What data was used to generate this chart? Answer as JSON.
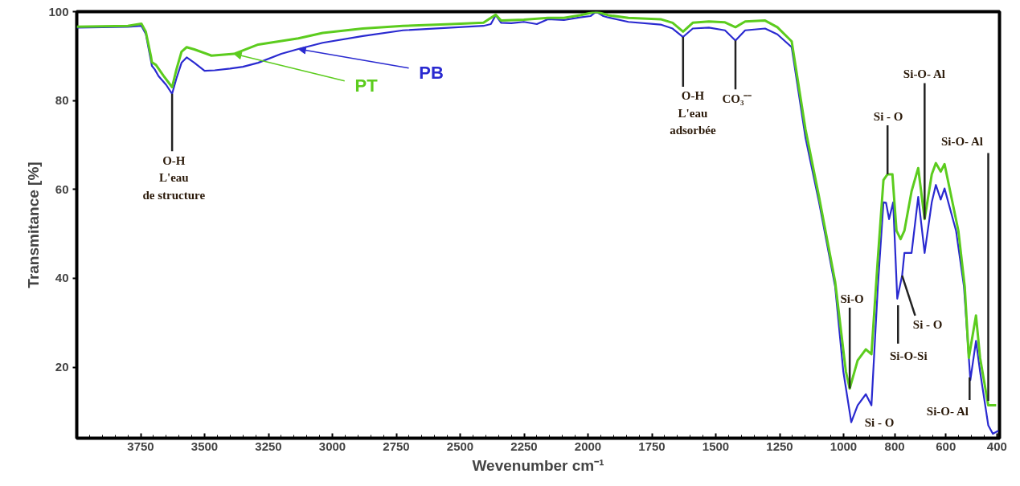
{
  "chart_data": {
    "type": "line",
    "xlabel": "Wevenumber cm⁻¹",
    "ylabel": "Transmitance [%]",
    "xlim": [
      4000,
      390
    ],
    "ylim": [
      4,
      100
    ],
    "xticks": [
      3750,
      3500,
      3250,
      3000,
      2750,
      2500,
      2250,
      2000,
      1750,
      1500,
      1250,
      1000,
      800,
      600,
      400
    ],
    "yticks": [
      20,
      40,
      60,
      80,
      100
    ],
    "grid": false,
    "legend": false,
    "marker": "none",
    "line_style": "solid",
    "series": [
      {
        "name": "PB",
        "color": "#2a2ad0",
        "x": [
          4000,
          3800,
          3747,
          3730,
          3710,
          3706,
          3695,
          3680,
          3650,
          3627,
          3610,
          3590,
          3570,
          3540,
          3500,
          3460,
          3400,
          3350,
          3290,
          3200,
          3133,
          3038,
          2881,
          2724,
          2535,
          2409,
          2380,
          2361,
          2340,
          2300,
          2251,
          2200,
          2157,
          2094,
          2031,
          1990,
          1968,
          1940,
          1921,
          1842,
          1716,
          1669,
          1628,
          1590,
          1527,
          1464,
          1423,
          1385,
          1307,
          1259,
          1203,
          1149,
          1096,
          1033,
          1001,
          970,
          945,
          913,
          891,
          866,
          844,
          834,
          822,
          806,
          790,
          771,
          762,
          734,
          708,
          683,
          655,
          639,
          620,
          605,
          560,
          529,
          504,
          482,
          466,
          434,
          416,
          394
        ],
        "values": [
          96.4,
          96.6,
          96.8,
          95,
          89,
          87.8,
          87,
          85.5,
          83.5,
          81.5,
          85,
          88.5,
          89.7,
          88.5,
          86.7,
          86.8,
          87.2,
          87.6,
          88.5,
          90.5,
          91.6,
          93,
          94.5,
          95.8,
          96.4,
          96.8,
          97.2,
          99.2,
          97.5,
          97.4,
          97.7,
          97.2,
          98.3,
          98.1,
          98.7,
          99,
          100,
          99,
          98.7,
          97.7,
          97.1,
          96.2,
          94.3,
          96.2,
          96.4,
          95.8,
          93.5,
          95.8,
          96.2,
          94.9,
          92,
          71.6,
          57.1,
          38.1,
          19,
          7.6,
          11.4,
          13.9,
          11.4,
          38.1,
          57.1,
          57,
          53.3,
          57.1,
          35.4,
          40.6,
          45.7,
          45.7,
          58.3,
          45.7,
          57.1,
          61,
          57.7,
          60.2,
          50.7,
          38.1,
          17.1,
          25.9,
          19,
          6.9,
          5,
          5.7
        ]
      },
      {
        "name": "PT",
        "color": "#5ccc1e",
        "x": [
          4000,
          3800,
          3747,
          3730,
          3710,
          3706,
          3690,
          3660,
          3627,
          3610,
          3590,
          3570,
          3540,
          3473,
          3385,
          3290,
          3133,
          3038,
          2881,
          2724,
          2535,
          2409,
          2361,
          2340,
          2251,
          2157,
          2094,
          2031,
          1968,
          1921,
          1842,
          1716,
          1669,
          1628,
          1590,
          1527,
          1464,
          1423,
          1385,
          1307,
          1259,
          1203,
          1149,
          1096,
          1033,
          991,
          976,
          945,
          913,
          891,
          866,
          844,
          828,
          809,
          793,
          777,
          762,
          734,
          708,
          683,
          655,
          639,
          620,
          605,
          551,
          526,
          510,
          482,
          466,
          434,
          403
        ],
        "values": [
          96.6,
          96.8,
          97.3,
          95.5,
          90,
          88.6,
          88,
          85.5,
          83,
          87,
          91,
          92,
          91.5,
          90.1,
          90.5,
          92.6,
          94,
          95.2,
          96.2,
          96.8,
          97.2,
          97.5,
          99.3,
          98,
          98.2,
          98.6,
          98.6,
          99.2,
          100,
          99.2,
          98.6,
          98.3,
          97.5,
          95.5,
          97.5,
          97.8,
          97.6,
          96.5,
          97.8,
          98,
          96.5,
          93.3,
          73.5,
          58.3,
          39.2,
          19,
          15.2,
          21.5,
          24,
          22.9,
          44.4,
          62.1,
          63.4,
          63.4,
          50.7,
          48.8,
          50.7,
          59.6,
          64.8,
          53.3,
          63.4,
          65.9,
          64,
          65.7,
          50.7,
          38.1,
          22.1,
          31.6,
          22.1,
          11.4,
          11.4
        ]
      }
    ],
    "annotations": [
      {
        "text": "O-H\nL'eau\nde structure",
        "x": 3627,
        "y": 81.5
      },
      {
        "text": "O-H\nL'eau\nadsorbée",
        "x": 1628,
        "y": 94.3
      },
      {
        "text": "CO₃⁻⁻",
        "x": 1423,
        "y": 93.5
      },
      {
        "text": "Si - O",
        "x": 828,
        "y": 63.4
      },
      {
        "text": "Si-O- Al",
        "x": 683,
        "y": 53.3
      },
      {
        "text": "Si-O- Al",
        "x": 434,
        "y": 11.4
      },
      {
        "text": "Si-O",
        "x": 976,
        "y": 15.2
      },
      {
        "text": "Si-O-Si",
        "x": 790,
        "y": 35.4
      },
      {
        "text": "Si - O",
        "x": 771,
        "y": 40.6
      },
      {
        "text": "Si - O",
        "x": 891,
        "y": 11.4
      },
      {
        "text": "Si-O- Al",
        "x": 504,
        "y": 17.1
      }
    ]
  }
}
